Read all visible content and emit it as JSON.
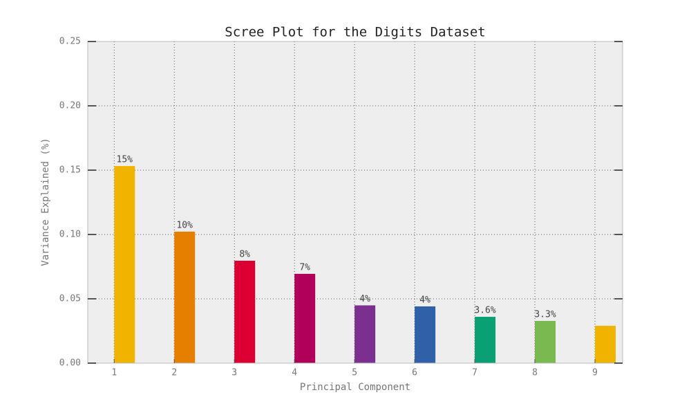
{
  "chart_data": {
    "type": "bar",
    "title": "Scree Plot for the Digits Dataset",
    "x_label": "Principal Component",
    "y_label": "Variance Explained (%)",
    "x": [
      1,
      2,
      3,
      4,
      5,
      6,
      7,
      8,
      9
    ],
    "values": [
      0.1532,
      0.1022,
      0.0796,
      0.0694,
      0.0449,
      0.0441,
      0.036,
      0.0328,
      0.029
    ],
    "value_labels": [
      "15%",
      "10%",
      "8%",
      "7%",
      "4%",
      "4%",
      "3.6%",
      "3.3%",
      null
    ],
    "colors": [
      "#f0b400",
      "#e67e00",
      "#dc0032",
      "#b0005a",
      "#7b3090",
      "#3060a8",
      "#0aa074",
      "#7ab850",
      "#f0b400"
    ],
    "xlim": [
      0.56,
      9.46
    ],
    "xticks": [
      1,
      2,
      3,
      4,
      5,
      6,
      7,
      8,
      9
    ],
    "ylim": [
      0,
      0.25
    ],
    "yticks": [
      {
        "value": 0,
        "label": "0.00"
      },
      {
        "value": 0.05,
        "label": "0.05"
      },
      {
        "value": 0.1,
        "label": "0.10"
      },
      {
        "value": 0.15,
        "label": "0.15"
      },
      {
        "value": 0.2,
        "label": "0.20"
      },
      {
        "value": 0.25,
        "label": "0.25"
      }
    ],
    "grid": true
  }
}
